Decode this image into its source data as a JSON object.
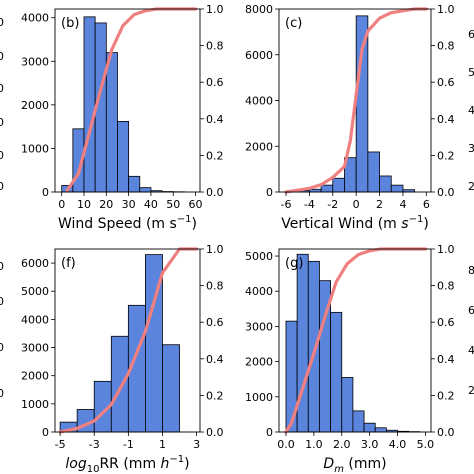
{
  "edge_fragments": {
    "left": [
      "0",
      "0",
      "0",
      "0",
      "0",
      "0",
      "0",
      "0",
      "0",
      "0"
    ],
    "right": [
      "6",
      "5",
      "4",
      "3",
      "2",
      "8",
      "6",
      "4",
      "2"
    ]
  },
  "colors": {
    "bar": "#5b84dd",
    "bar_edge": "#000000",
    "cdf": "#f08080"
  },
  "chart_data": [
    {
      "type": "bar",
      "panel_label": "(b)",
      "xlabel_parts": [
        "Wind Speed (m s",
        "−1",
        ")"
      ],
      "xlim": [
        -3,
        62
      ],
      "xticks": [
        0,
        10,
        20,
        30,
        40,
        50,
        60
      ],
      "ylim": [
        0,
        4200
      ],
      "yticks": [
        0,
        1000,
        2000,
        3000,
        4000
      ],
      "bin_edges": [
        0,
        5,
        10,
        15,
        20,
        25,
        30,
        35,
        40,
        45,
        50,
        55
      ],
      "values": [
        150,
        1450,
        4020,
        3880,
        3200,
        1620,
        360,
        100,
        30,
        10,
        5
      ],
      "cdf_x": [
        2.5,
        7.5,
        12.5,
        17.5,
        22.5,
        27.5,
        32.5,
        37.5,
        42.5,
        47.5,
        52.5,
        60
      ],
      "cdf_y": [
        0.01,
        0.1,
        0.33,
        0.56,
        0.78,
        0.91,
        0.97,
        0.99,
        1.0,
        1.0,
        1.0,
        1.0
      ],
      "y2lim": [
        0,
        1
      ],
      "y2ticks": [
        0.0,
        0.2,
        0.4,
        0.6,
        0.8,
        1.0
      ]
    },
    {
      "type": "bar",
      "panel_label": "(c)",
      "xlabel_parts": [
        "Vertical Wind (m ",
        "s",
        "−1",
        ")"
      ],
      "xlim": [
        -6.6,
        6.4
      ],
      "xticks": [
        -6,
        -4,
        -2,
        0,
        2,
        4,
        6
      ],
      "ylim": [
        0,
        8000
      ],
      "yticks": [
        0,
        2000,
        4000,
        6000,
        8000
      ],
      "bin_edges": [
        -6,
        -5,
        -4,
        -3,
        -2,
        -1,
        0,
        1,
        2,
        3,
        4,
        5
      ],
      "values": [
        30,
        60,
        120,
        300,
        600,
        1500,
        7700,
        1750,
        700,
        300,
        100
      ],
      "cdf_x": [
        -6,
        -5,
        -4,
        -3,
        -2,
        -1,
        -0.5,
        0.5,
        1,
        2,
        3,
        4,
        5,
        6
      ],
      "cdf_y": [
        0.0,
        0.01,
        0.02,
        0.04,
        0.08,
        0.14,
        0.28,
        0.78,
        0.88,
        0.95,
        0.98,
        0.99,
        1.0,
        1.0
      ],
      "y2lim": [
        0,
        1
      ],
      "y2ticks": [
        0.0,
        0.2,
        0.4,
        0.6,
        0.8,
        1.0
      ]
    },
    {
      "type": "bar",
      "panel_label": "(f)",
      "xlabel_parts": [
        "log",
        "10",
        "RR (mm ",
        "h",
        "−1",
        ")"
      ],
      "xlim": [
        -5.3,
        3.2
      ],
      "xticks": [
        -5,
        -3,
        -1,
        1,
        3
      ],
      "ylim": [
        0,
        6500
      ],
      "yticks": [
        0,
        1000,
        2000,
        3000,
        4000,
        5000,
        6000
      ],
      "bin_edges": [
        -5,
        -4,
        -3,
        -2,
        -1,
        0,
        1,
        2
      ],
      "values": [
        350,
        800,
        1800,
        3400,
        4500,
        6300,
        3100
      ],
      "cdf_x": [
        -5,
        -4,
        -3,
        -2,
        -1,
        0,
        1,
        2,
        3
      ],
      "cdf_y": [
        0.0,
        0.02,
        0.06,
        0.15,
        0.32,
        0.55,
        0.87,
        1.0,
        1.0
      ],
      "y2lim": [
        0,
        1
      ],
      "y2ticks": [
        0.0,
        0.2,
        0.4,
        0.6,
        0.8,
        1.0
      ]
    },
    {
      "type": "bar",
      "panel_label": "(g)",
      "xlabel_parts": [
        "D",
        "m",
        " (mm)"
      ],
      "xlim": [
        -0.25,
        5.2
      ],
      "xticks": [
        0.0,
        1.0,
        2.0,
        3.0,
        4.0,
        5.0
      ],
      "xtick_labels": [
        "0.0",
        "1.0",
        "2.0",
        "3.0",
        "4.0",
        "5.0"
      ],
      "ylim": [
        0,
        5200
      ],
      "yticks": [
        0,
        1000,
        2000,
        3000,
        4000,
        5000
      ],
      "bin_edges": [
        0.0,
        0.4,
        0.8,
        1.2,
        1.6,
        2.0,
        2.4,
        2.8,
        3.2,
        3.6,
        4.0,
        4.4,
        4.8
      ],
      "values": [
        3150,
        5050,
        4850,
        4300,
        3400,
        1550,
        600,
        250,
        120,
        50,
        20,
        10
      ],
      "cdf_x": [
        0.0,
        0.2,
        0.6,
        1.0,
        1.4,
        1.8,
        2.2,
        2.6,
        3.0,
        3.4,
        4.0,
        5.0
      ],
      "cdf_y": [
        0.0,
        0.05,
        0.24,
        0.43,
        0.63,
        0.82,
        0.92,
        0.97,
        0.99,
        1.0,
        1.0,
        1.0
      ],
      "y2lim": [
        0,
        1
      ],
      "y2ticks": [
        0.0,
        0.2,
        0.4,
        0.6,
        0.8,
        1.0
      ]
    }
  ]
}
